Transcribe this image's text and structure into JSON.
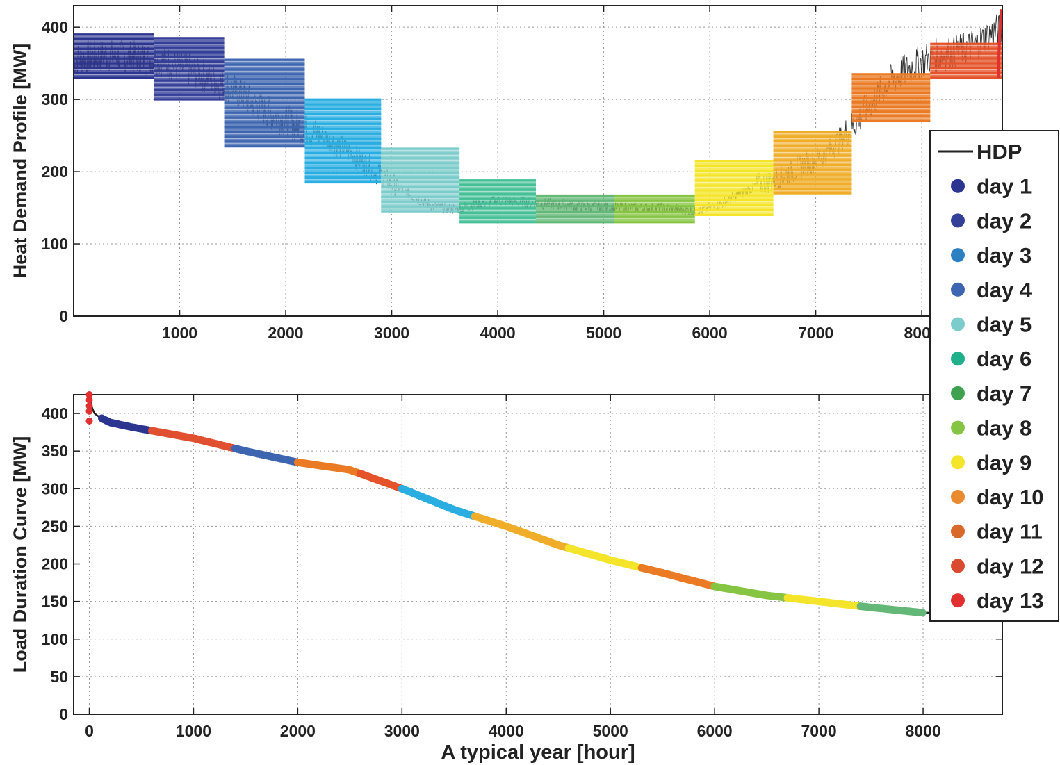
{
  "chart_data": [
    {
      "type": "line",
      "ylabel": "Heat Demand Profile [MW]",
      "xlabel": "",
      "xlim": [
        0,
        8760
      ],
      "ylim": [
        0,
        430
      ],
      "xticks": [
        1000,
        2000,
        3000,
        4000,
        5000,
        6000,
        7000,
        8000
      ],
      "yticks": [
        0,
        100,
        200,
        300,
        400
      ],
      "grid": true,
      "hdp_trend": {
        "x": [
          0,
          300,
          600,
          800,
          1000,
          1200,
          1400,
          1600,
          1800,
          2000,
          2200,
          2400,
          2600,
          2800,
          3000,
          3200,
          3400,
          3600,
          3800,
          4000,
          4200,
          4500,
          4800,
          5100,
          5400,
          5700,
          5900,
          6100,
          6300,
          6500,
          6700,
          6900,
          7100,
          7300,
          7500,
          7700,
          7900,
          8100,
          8300,
          8500,
          8700
        ],
        "y": [
          355,
          362,
          358,
          355,
          345,
          335,
          322,
          305,
          285,
          270,
          258,
          245,
          228,
          205,
          185,
          165,
          152,
          148,
          155,
          160,
          158,
          155,
          152,
          150,
          150,
          148,
          145,
          155,
          170,
          185,
          195,
          210,
          225,
          255,
          290,
          325,
          345,
          360,
          365,
          375,
          395
        ]
      },
      "blocks": [
        {
          "day": "day 1",
          "x": [
            0,
            760
          ],
          "y": [
            330,
            390
          ],
          "color": "#2c3590"
        },
        {
          "day": "day 2",
          "x": [
            760,
            1420
          ],
          "y": [
            300,
            385
          ],
          "color": "#343f98"
        },
        {
          "day": "day 3",
          "x": [
            1420,
            2180
          ],
          "y": [
            235,
            355
          ],
          "color": "#3d65b0"
        },
        {
          "day": "day 4",
          "x": [
            2180,
            2900
          ],
          "y": [
            185,
            300
          ],
          "color": "#2aaee2"
        },
        {
          "day": "day 5",
          "x": [
            2900,
            3640
          ],
          "y": [
            145,
            232
          ],
          "color": "#7ccccc"
        },
        {
          "day": "day 6",
          "x": [
            3640,
            4360
          ],
          "y": [
            130,
            188
          ],
          "color": "#44bf96"
        },
        {
          "day": "day 7",
          "x": [
            4360,
            5100
          ],
          "y": [
            130,
            167
          ],
          "color": "#64b877"
        },
        {
          "day": "day 8",
          "x": [
            5100,
            5860
          ],
          "y": [
            130,
            167
          ],
          "color": "#86c543"
        },
        {
          "day": "day 9",
          "x": [
            5860,
            6600
          ],
          "y": [
            140,
            215
          ],
          "color": "#f5e52a"
        },
        {
          "day": "day 10",
          "x": [
            6600,
            7340
          ],
          "y": [
            170,
            255
          ],
          "color": "#f0ad2a"
        },
        {
          "day": "day 11",
          "x": [
            7340,
            8080
          ],
          "y": [
            270,
            335
          ],
          "color": "#ea7b24"
        },
        {
          "day": "day 12",
          "x": [
            8080,
            8760
          ],
          "y": [
            330,
            377
          ],
          "color": "#e4532a"
        }
      ],
      "day13_spike": {
        "x": [
          8720,
          8730,
          8740,
          8750
        ],
        "y": [
          330,
          370,
          400,
          425
        ],
        "color": "#e03030"
      }
    },
    {
      "type": "line",
      "ylabel": "Load Duration Curve [MW]",
      "xlabel": "A typical year [hour]",
      "xlim": [
        -150,
        8760
      ],
      "ylim": [
        0,
        425
      ],
      "xticks": [
        0,
        1000,
        2000,
        3000,
        4000,
        5000,
        6000,
        7000,
        8000
      ],
      "yticks": [
        0,
        50,
        100,
        150,
        200,
        250,
        300,
        350,
        400
      ],
      "grid": true,
      "ldc": {
        "x": [
          0,
          20,
          50,
          100,
          200,
          400,
          600,
          1000,
          1500,
          2000,
          2500,
          3000,
          3500,
          4000,
          4500,
          5000,
          5500,
          6000,
          6500,
          7000,
          7500,
          8000,
          8200
        ],
        "y": [
          425,
          410,
          400,
          395,
          388,
          382,
          377,
          367,
          350,
          335,
          325,
          300,
          272,
          250,
          225,
          205,
          188,
          170,
          158,
          150,
          142,
          135,
          135
        ]
      },
      "segments": [
        {
          "x": [
            120,
            600
          ],
          "color": "#2c3590"
        },
        {
          "x": [
            600,
            1400
          ],
          "color": "#e05030"
        },
        {
          "x": [
            1400,
            2000
          ],
          "color": "#3d65b0"
        },
        {
          "x": [
            2000,
            2600
          ],
          "color": "#ea7b24"
        },
        {
          "x": [
            2600,
            3000
          ],
          "color": "#e4532a"
        },
        {
          "x": [
            3000,
            3700
          ],
          "color": "#2aaee2"
        },
        {
          "x": [
            3700,
            4600
          ],
          "color": "#f0ad2a"
        },
        {
          "x": [
            4600,
            5300
          ],
          "color": "#f5e52a"
        },
        {
          "x": [
            5300,
            6000
          ],
          "color": "#ea7b24"
        },
        {
          "x": [
            6000,
            6700
          ],
          "color": "#86c543"
        },
        {
          "x": [
            6700,
            7400
          ],
          "color": "#f5e52a"
        },
        {
          "x": [
            7400,
            8000
          ],
          "color": "#64b877"
        }
      ],
      "red_points": {
        "x": [
          0,
          0,
          0,
          0,
          0
        ],
        "y": [
          425,
          418,
          410,
          403,
          390
        ]
      }
    }
  ],
  "legend": {
    "placement": "right",
    "items": [
      {
        "label": "HDP",
        "kind": "line",
        "color": "#222222"
      },
      {
        "label": "day 1",
        "kind": "dot",
        "color": "#2c3590"
      },
      {
        "label": "day 2",
        "kind": "dot",
        "color": "#343f98"
      },
      {
        "label": "day 3",
        "kind": "dot",
        "color": "#2a80c0"
      },
      {
        "label": "day 4",
        "kind": "dot",
        "color": "#3d65b0"
      },
      {
        "label": "day 5",
        "kind": "dot",
        "color": "#7ccccc"
      },
      {
        "label": "day 6",
        "kind": "dot",
        "color": "#1fb08a"
      },
      {
        "label": "day 7",
        "kind": "dot",
        "color": "#3fa050"
      },
      {
        "label": "day 8",
        "kind": "dot",
        "color": "#86c543"
      },
      {
        "label": "day 9",
        "kind": "dot",
        "color": "#f5e52a"
      },
      {
        "label": "day 10",
        "kind": "dot",
        "color": "#ea8a30"
      },
      {
        "label": "day 11",
        "kind": "dot",
        "color": "#d9692a"
      },
      {
        "label": "day 12",
        "kind": "dot",
        "color": "#d94a30"
      },
      {
        "label": "day 13",
        "kind": "dot",
        "color": "#e03030"
      }
    ]
  }
}
